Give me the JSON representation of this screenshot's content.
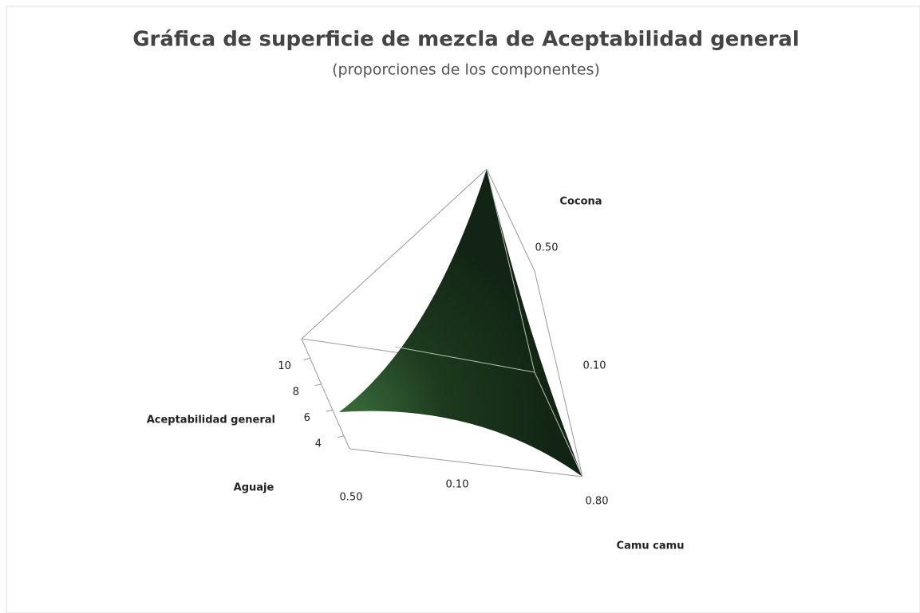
{
  "chart_data": {
    "type": "surface",
    "title": "Gráfica de superficie de mezcla de Aceptabilidad general",
    "subtitle": "(proporciones de los componentes)",
    "zlabel": "Aceptabilidad general",
    "zlim": [
      3,
      11.5
    ],
    "zticks": [
      4,
      6,
      8,
      10
    ],
    "color": "#152a17",
    "components": [
      {
        "name": "Aguaje",
        "ticks": [
          {
            "value": 0.5,
            "label": "0.50"
          }
        ]
      },
      {
        "name": "Camu camu",
        "ticks": [
          {
            "value": 0.1,
            "label": "0.10"
          },
          {
            "value": 0.8,
            "label": "0.80"
          }
        ]
      },
      {
        "name": "Cocona",
        "ticks": [
          {
            "value": 0.5,
            "label": "0.50"
          },
          {
            "value": 0.1,
            "label": "0.10"
          }
        ]
      }
    ]
  }
}
